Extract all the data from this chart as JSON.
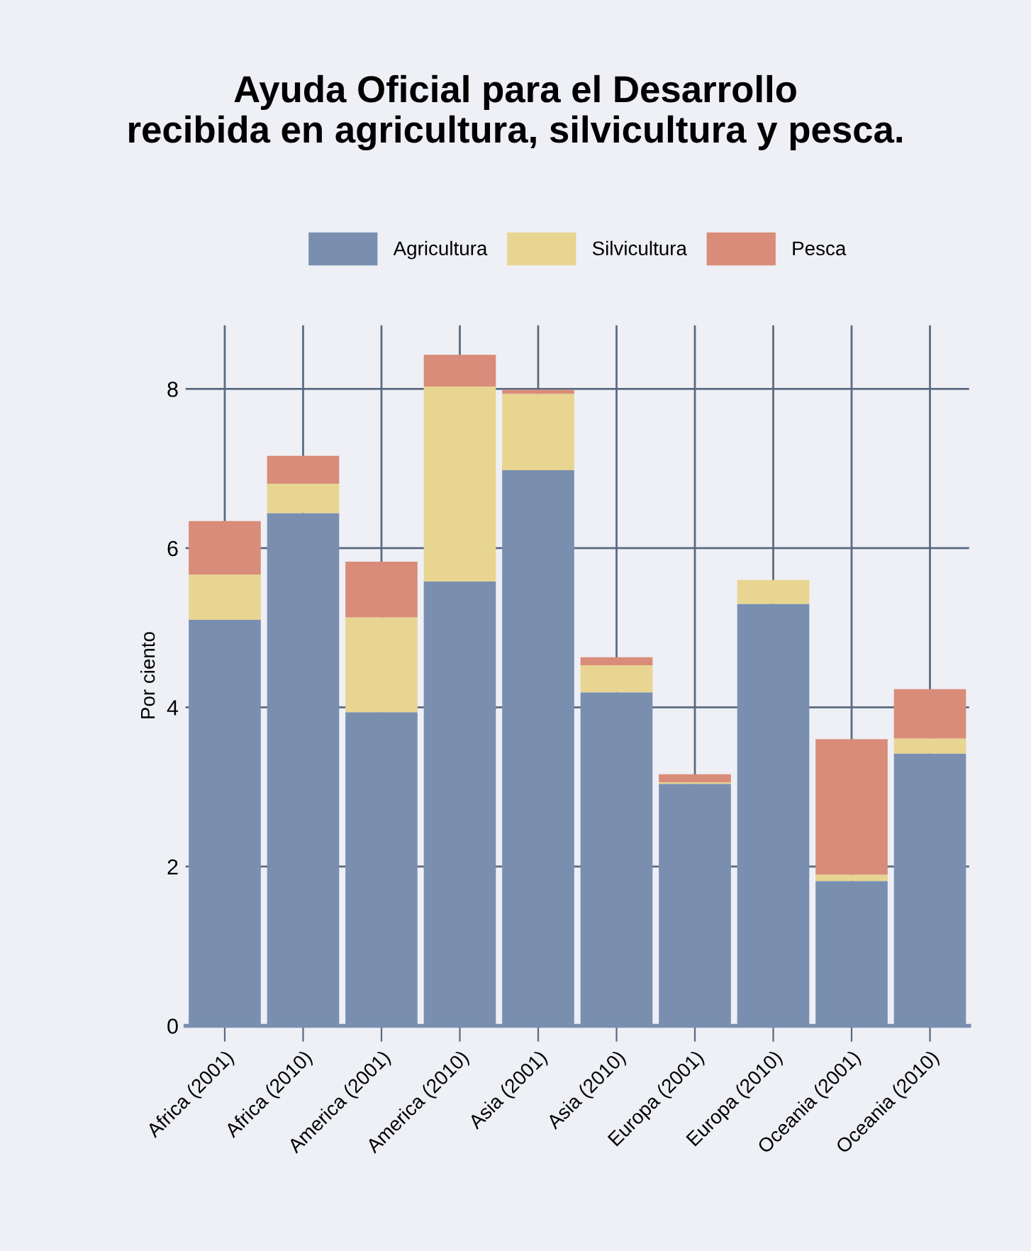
{
  "chart_data": {
    "type": "bar",
    "title": "Ayuda Oficial para el Desarrollo\nrecibida en agricultura, silvicultura y pesca.",
    "ylabel": "Por ciento",
    "categories": [
      "Africa (2001)",
      "Africa (2010)",
      "America (2001)",
      "America (2010)",
      "Asia (2001)",
      "Asia (2010)",
      "Europa (2001)",
      "Europa (2010)",
      "Oceania (2001)",
      "Oceania (2010)"
    ],
    "series": [
      {
        "name": "Agricultura",
        "color": "#7a8fb0",
        "values": [
          5.1,
          6.44,
          3.94,
          5.58,
          6.98,
          4.19,
          3.04,
          5.3,
          1.82,
          3.42
        ]
      },
      {
        "name": "Silvicultura",
        "color": "#e8d591",
        "values": [
          0.57,
          0.37,
          1.19,
          2.45,
          0.96,
          0.34,
          0.02,
          0.3,
          0.08,
          0.19
        ]
      },
      {
        "name": "Pesca",
        "color": "#d98c7a",
        "values": [
          0.67,
          0.35,
          0.7,
          0.4,
          0.05,
          0.1,
          0.1,
          0.0,
          1.7,
          0.62
        ]
      }
    ],
    "stacked": true,
    "ylim": [
      0,
      8.8
    ],
    "yticks": [
      0,
      2,
      4,
      6,
      8
    ],
    "grid": true,
    "legend": "top"
  }
}
